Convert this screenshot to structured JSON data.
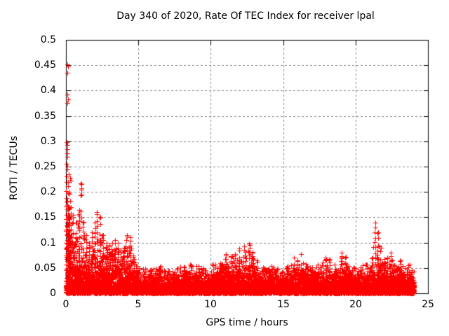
{
  "chart_data": {
    "type": "scatter",
    "title": "Day 340 of 2020, Rate Of TEC Index for receiver lpal",
    "xlabel": "GPS time / hours",
    "ylabel": "ROTI / TECUs",
    "xlim": [
      0,
      25
    ],
    "ylim": [
      0,
      0.5
    ],
    "xticks": [
      0,
      5,
      10,
      15,
      20,
      25
    ],
    "xtick_labels": [
      "0",
      "5",
      "10",
      "15",
      "20",
      "25"
    ],
    "yticks": [
      0,
      0.05,
      0.1,
      0.15,
      0.2,
      0.25,
      0.3,
      0.35,
      0.4,
      0.45,
      0.5
    ],
    "ytick_labels": [
      "0",
      "0.05",
      "0.1",
      "0.15",
      "0.2",
      "0.25",
      "0.3",
      "0.35",
      "0.4",
      "0.45",
      "0.5"
    ],
    "grid": {
      "on": true,
      "style": "dashed",
      "color": "#848484"
    },
    "background": "#ffffff",
    "border_color": "#000000",
    "marker": "plus",
    "marker_color": "#ff0000",
    "marker_size_px": 7,
    "data_start_hour": 0,
    "data_end_hour": 24.05,
    "series_description": "Dense scatter of ROTI values; solid band 0-0.04 TECU all day, large spiky activity hours 0-5, quiet 5-11, moderate spikes 11-13 and 15-19, tall isolated spike near hour 21.4 reaching 0.139, activity ends at hour 24.",
    "baseline": {
      "dense_band_mean": 0.013,
      "dense_band_top": 0.04
    },
    "envelope": [
      [
        0.05,
        0.23
      ],
      [
        0.15,
        0.22
      ],
      [
        0.25,
        0.2
      ],
      [
        0.35,
        0.17
      ],
      [
        0.5,
        0.155
      ],
      [
        0.7,
        0.14
      ],
      [
        0.9,
        0.165
      ],
      [
        1.05,
        0.215
      ],
      [
        1.2,
        0.14
      ],
      [
        1.4,
        0.115
      ],
      [
        1.6,
        0.1
      ],
      [
        1.8,
        0.12
      ],
      [
        2.0,
        0.14
      ],
      [
        2.15,
        0.16
      ],
      [
        2.35,
        0.15
      ],
      [
        2.55,
        0.115
      ],
      [
        2.8,
        0.1
      ],
      [
        3.0,
        0.095
      ],
      [
        3.2,
        0.1
      ],
      [
        3.4,
        0.105
      ],
      [
        3.6,
        0.1
      ],
      [
        3.8,
        0.085
      ],
      [
        4.0,
        0.09
      ],
      [
        4.2,
        0.115
      ],
      [
        4.45,
        0.11
      ],
      [
        4.65,
        0.075
      ],
      [
        4.85,
        0.06
      ],
      [
        5.1,
        0.052
      ],
      [
        5.5,
        0.05
      ],
      [
        6.0,
        0.05
      ],
      [
        6.5,
        0.056
      ],
      [
        7.0,
        0.05
      ],
      [
        7.5,
        0.052
      ],
      [
        8.0,
        0.055
      ],
      [
        8.5,
        0.06
      ],
      [
        9.0,
        0.055
      ],
      [
        9.5,
        0.05
      ],
      [
        10.0,
        0.056
      ],
      [
        10.5,
        0.06
      ],
      [
        11.05,
        0.078
      ],
      [
        11.4,
        0.072
      ],
      [
        11.7,
        0.078
      ],
      [
        11.95,
        0.088
      ],
      [
        12.3,
        0.092
      ],
      [
        12.65,
        0.098
      ],
      [
        12.9,
        0.08
      ],
      [
        13.2,
        0.065
      ],
      [
        13.5,
        0.055
      ],
      [
        13.8,
        0.05
      ],
      [
        14.2,
        0.055
      ],
      [
        14.6,
        0.05
      ],
      [
        15.0,
        0.052
      ],
      [
        15.4,
        0.06
      ],
      [
        15.75,
        0.07
      ],
      [
        16.0,
        0.065
      ],
      [
        16.25,
        0.078
      ],
      [
        16.5,
        0.062
      ],
      [
        16.8,
        0.055
      ],
      [
        17.2,
        0.058
      ],
      [
        17.6,
        0.062
      ],
      [
        17.95,
        0.07
      ],
      [
        18.2,
        0.068
      ],
      [
        18.5,
        0.058
      ],
      [
        18.8,
        0.06
      ],
      [
        19.05,
        0.08
      ],
      [
        19.3,
        0.07
      ],
      [
        19.6,
        0.058
      ],
      [
        19.9,
        0.052
      ],
      [
        20.2,
        0.055
      ],
      [
        20.6,
        0.058
      ],
      [
        20.9,
        0.06
      ],
      [
        21.15,
        0.07
      ],
      [
        21.35,
        0.139
      ],
      [
        21.55,
        0.12
      ],
      [
        21.75,
        0.09
      ],
      [
        22.0,
        0.068
      ],
      [
        22.2,
        0.07
      ],
      [
        22.45,
        0.08
      ],
      [
        22.7,
        0.062
      ],
      [
        22.9,
        0.058
      ],
      [
        23.1,
        0.065
      ],
      [
        23.3,
        0.06
      ],
      [
        23.6,
        0.062
      ],
      [
        23.85,
        0.055
      ],
      [
        24.0,
        0.045
      ]
    ],
    "outliers": [
      [
        0.08,
        0.452
      ],
      [
        0.13,
        0.447
      ],
      [
        0.1,
        0.435
      ],
      [
        0.1,
        0.392
      ],
      [
        0.13,
        0.383
      ],
      [
        0.11,
        0.376
      ],
      [
        0.05,
        0.298
      ],
      [
        0.08,
        0.293
      ],
      [
        0.1,
        0.285
      ],
      [
        0.12,
        0.276
      ],
      [
        0.08,
        0.27
      ],
      [
        0.06,
        0.255
      ],
      [
        0.1,
        0.25
      ],
      [
        0.12,
        0.245
      ],
      [
        0.2,
        0.235
      ],
      [
        0.3,
        0.228
      ],
      [
        0.35,
        0.222
      ],
      [
        1.02,
        0.217
      ],
      [
        1.05,
        0.205
      ],
      [
        1.08,
        0.195
      ]
    ]
  }
}
